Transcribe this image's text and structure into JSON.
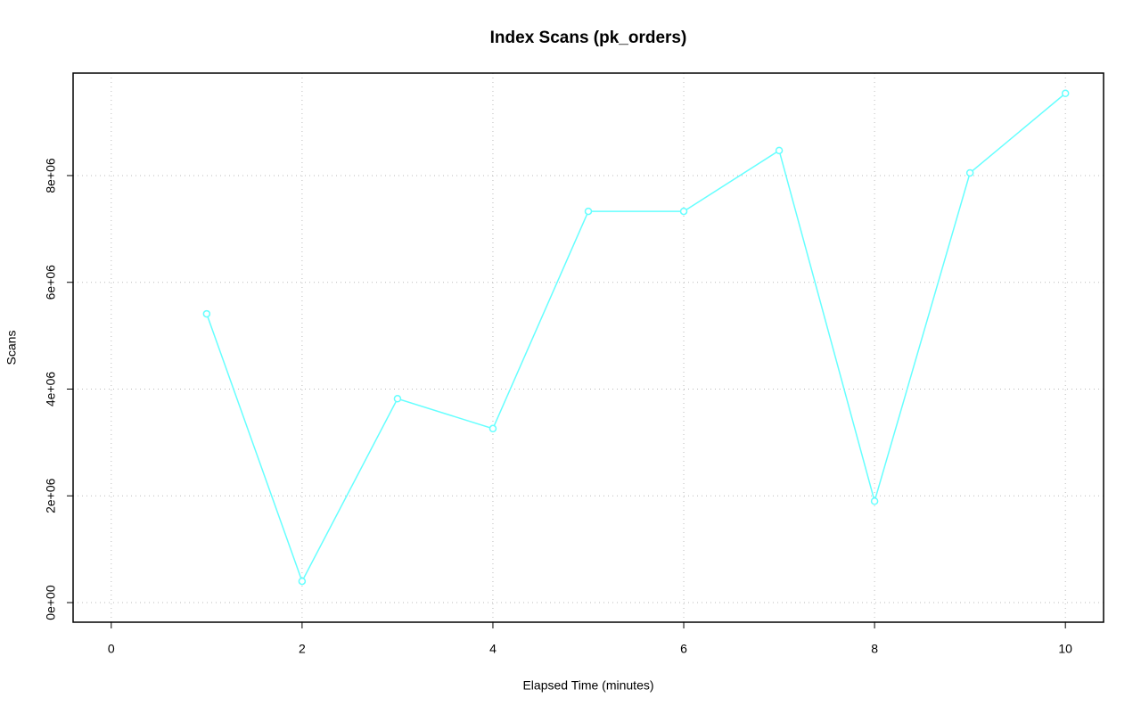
{
  "chart_data": {
    "type": "line",
    "title": "Index Scans (pk_orders)",
    "x_label": "Elapsed Time (minutes)",
    "y_label": "Scans",
    "x": [
      1,
      2,
      3,
      4,
      5,
      6,
      7,
      8,
      9,
      10
    ],
    "series": [
      {
        "color": "#66ffff",
        "values": [
          5410000,
          400000,
          3820000,
          3260000,
          7330000,
          7330000,
          8470000,
          1900000,
          8050000,
          9540000
        ]
      }
    ],
    "xlim": [
      -0.4,
      10.4
    ],
    "ylim": [
      -367000,
      9920000
    ],
    "xticks": [
      0,
      2,
      4,
      6,
      8,
      10
    ],
    "yticks": [
      {
        "value": 0,
        "label": "0e+00"
      },
      {
        "value": 2000000,
        "label": "2e+06"
      },
      {
        "value": 4000000,
        "label": "4e+06"
      },
      {
        "value": 6000000,
        "label": "6e+06"
      },
      {
        "value": 8000000,
        "label": "8e+06"
      }
    ],
    "grid": true
  }
}
